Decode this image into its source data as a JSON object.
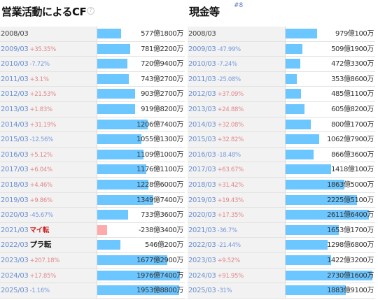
{
  "left": {
    "title": "営業活動によるCF",
    "info_icon": "?",
    "rows": [
      {
        "year": "2008/03",
        "change": "",
        "change_type": "",
        "value": "577億1800万",
        "ratio": 0.29
      },
      {
        "year": "2009/03",
        "change": "+35.35%",
        "change_type": "pos",
        "value": "781億2200万",
        "ratio": 0.4
      },
      {
        "year": "2010/03",
        "change": "-7.72%",
        "change_type": "neg",
        "value": "720億9400万",
        "ratio": 0.36
      },
      {
        "year": "2011/03",
        "change": "+3.1%",
        "change_type": "pos",
        "value": "743億2700万",
        "ratio": 0.38
      },
      {
        "year": "2012/03",
        "change": "+21.53%",
        "change_type": "pos",
        "value": "903億2700万",
        "ratio": 0.46
      },
      {
        "year": "2013/03",
        "change": "+1.83%",
        "change_type": "pos",
        "value": "919億8200万",
        "ratio": 0.46
      },
      {
        "year": "2014/03",
        "change": "+31.19%",
        "change_type": "pos",
        "value": "1206億7400万",
        "ratio": 0.61
      },
      {
        "year": "2015/03",
        "change": "-12.56%",
        "change_type": "neg",
        "value": "1055億1300万",
        "ratio": 0.53
      },
      {
        "year": "2016/03",
        "change": "+5.12%",
        "change_type": "pos",
        "value": "1109億1000万",
        "ratio": 0.56
      },
      {
        "year": "2017/03",
        "change": "+6.04%",
        "change_type": "pos",
        "value": "1176億1100万",
        "ratio": 0.59
      },
      {
        "year": "2018/03",
        "change": "+4.46%",
        "change_type": "pos",
        "value": "1228億6000万",
        "ratio": 0.62
      },
      {
        "year": "2019/03",
        "change": "+9.86%",
        "change_type": "pos",
        "value": "1349億7400万",
        "ratio": 0.68
      },
      {
        "year": "2020/03",
        "change": "-45.67%",
        "change_type": "neg",
        "value": "733億3600万",
        "ratio": 0.37
      },
      {
        "year": "2021/03",
        "change": "マイ転",
        "change_type": "mai",
        "value": "-238億3400万",
        "ratio": -0.12
      },
      {
        "year": "2022/03",
        "change": "プラ転",
        "change_type": "pura",
        "value": "546億200万",
        "ratio": 0.28
      },
      {
        "year": "2023/03",
        "change": "+207.18%",
        "change_type": "pos",
        "value": "1677億2900万",
        "ratio": 0.85
      },
      {
        "year": "2024/03",
        "change": "+17.85%",
        "change_type": "pos",
        "value": "1976億7400万",
        "ratio": 1.0
      },
      {
        "year": "2025/03",
        "change": "-1.16%",
        "change_type": "neg",
        "value": "1953億8800万",
        "ratio": 0.99
      }
    ]
  },
  "right": {
    "title": "現金等",
    "info_icon": "?",
    "note": "#8",
    "rows": [
      {
        "year": "2008/03",
        "change": "",
        "change_type": "",
        "value": "979億100万",
        "ratio": 0.36
      },
      {
        "year": "2009/03",
        "change": "-47.99%",
        "change_type": "neg",
        "value": "509億1900万",
        "ratio": 0.19
      },
      {
        "year": "2010/03",
        "change": "-7.24%",
        "change_type": "neg",
        "value": "472億3300万",
        "ratio": 0.17
      },
      {
        "year": "2011/03",
        "change": "-25.08%",
        "change_type": "neg",
        "value": "353億8600万",
        "ratio": 0.13
      },
      {
        "year": "2012/03",
        "change": "+37.09%",
        "change_type": "pos",
        "value": "485億1100万",
        "ratio": 0.18
      },
      {
        "year": "2013/03",
        "change": "+24.88%",
        "change_type": "pos",
        "value": "605億8200万",
        "ratio": 0.22
      },
      {
        "year": "2014/03",
        "change": "+32.08%",
        "change_type": "pos",
        "value": "800億1700万",
        "ratio": 0.29
      },
      {
        "year": "2015/03",
        "change": "+32.82%",
        "change_type": "pos",
        "value": "1062億7900万",
        "ratio": 0.39
      },
      {
        "year": "2016/03",
        "change": "-18.48%",
        "change_type": "neg",
        "value": "866億3600万",
        "ratio": 0.32
      },
      {
        "year": "2017/03",
        "change": "+63.67%",
        "change_type": "pos",
        "value": "1418億100万",
        "ratio": 0.52
      },
      {
        "year": "2018/03",
        "change": "+31.42%",
        "change_type": "pos",
        "value": "1863億5000万",
        "ratio": 0.68
      },
      {
        "year": "2019/03",
        "change": "+19.43%",
        "change_type": "pos",
        "value": "2225億5100万",
        "ratio": 0.82
      },
      {
        "year": "2020/03",
        "change": "+17.35%",
        "change_type": "pos",
        "value": "2611億6400万",
        "ratio": 0.96
      },
      {
        "year": "2021/03",
        "change": "-36.7%",
        "change_type": "neg",
        "value": "1653億1700万",
        "ratio": 0.61
      },
      {
        "year": "2022/03",
        "change": "-21.44%",
        "change_type": "neg",
        "value": "1298億6800万",
        "ratio": 0.48
      },
      {
        "year": "2023/03",
        "change": "+9.52%",
        "change_type": "pos",
        "value": "1422億3200万",
        "ratio": 0.52
      },
      {
        "year": "2024/03",
        "change": "+91.95%",
        "change_type": "pos",
        "value": "2730億1600万",
        "ratio": 1.0
      },
      {
        "year": "2025/03",
        "change": "-31%",
        "change_type": "neg",
        "value": "1883億9100万",
        "ratio": 0.69
      }
    ]
  }
}
